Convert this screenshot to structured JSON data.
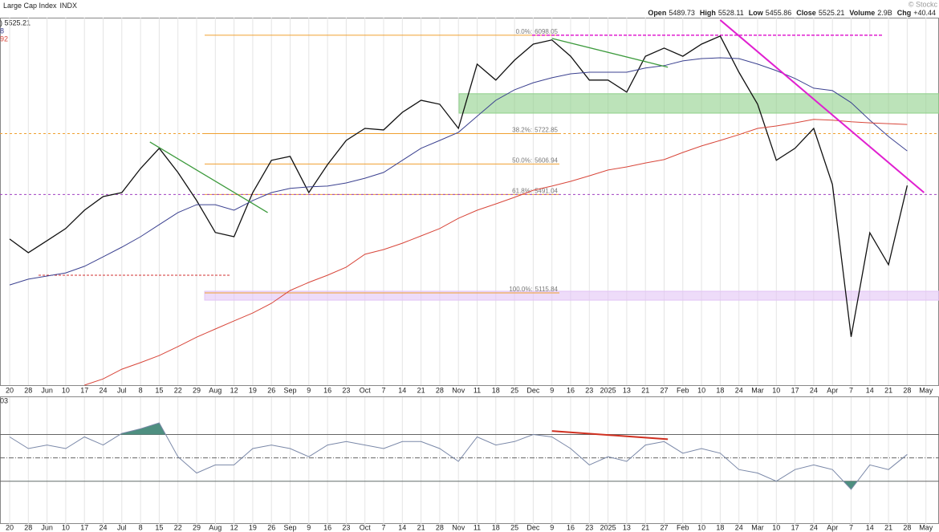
{
  "chart_data": [
    {
      "type": "line",
      "title": "Large Cap Index",
      "symbol": "INDX",
      "legend_lines": [
        ") 5525.21",
        "8",
        "92"
      ],
      "quote": [
        {
          "label": "Open",
          "value": "5489.73"
        },
        {
          "label": "High",
          "value": "5528.11"
        },
        {
          "label": "Low",
          "value": "5455.86"
        },
        {
          "label": "Close",
          "value": "5525.21"
        },
        {
          "label": "Volume",
          "value": "2.9B"
        },
        {
          "label": "Chg",
          "value": "+40.44"
        }
      ],
      "watermark": "© Stockc",
      "categories": [
        "20",
        "28",
        "Jun",
        "10",
        "17",
        "24",
        "Jul",
        "8",
        "15",
        "22",
        "29",
        "Aug",
        "12",
        "19",
        "26",
        "Sep",
        "9",
        "16",
        "23",
        "Oct",
        "7",
        "14",
        "21",
        "28",
        "Nov",
        "11",
        "18",
        "25",
        "Dec",
        "9",
        "16",
        "23",
        "2025",
        "13",
        "21",
        "27",
        "Feb",
        "10",
        "18",
        "24",
        "Mar",
        "10",
        "17",
        "24",
        "Apr",
        "7",
        "14",
        "21",
        "28",
        "May"
      ],
      "series": [
        {
          "color": "#111111",
          "values": [
            5321,
            5269,
            5315,
            5361,
            5431,
            5483,
            5498,
            5590,
            5667,
            5575,
            5468,
            5346,
            5330,
            5498,
            5621,
            5636,
            5498,
            5605,
            5697,
            5743,
            5737,
            5804,
            5850,
            5835,
            5743,
            5988,
            5927,
            6003,
            6064,
            6080,
            6018,
            5927,
            5927,
            5881,
            6018,
            6049,
            6018,
            6064,
            6095,
            5957,
            5835,
            5621,
            5667,
            5743,
            5529,
            4948,
            5345,
            5223,
            5525.21,
            null
          ]
        },
        {
          "color": "#3b4190",
          "values": [
            5146,
            5168,
            5180,
            5192,
            5217,
            5253,
            5290,
            5330,
            5376,
            5422,
            5452,
            5452,
            5431,
            5468,
            5498,
            5514,
            5520,
            5523,
            5535,
            5553,
            5575,
            5621,
            5667,
            5697,
            5728,
            5789,
            5850,
            5890,
            5917,
            5936,
            5951,
            5957,
            5957,
            5957,
            5973,
            5982,
            6000,
            6009,
            6012,
            6009,
            5988,
            5963,
            5933,
            5896,
            5887,
            5841,
            5774,
            5712,
            5657,
            null
          ]
        },
        {
          "color": "#d8463a",
          "values": [
            null,
            null,
            null,
            null,
            4764,
            4788,
            4825,
            4850,
            4877,
            4911,
            4947,
            4978,
            5009,
            5039,
            5076,
            5125,
            5156,
            5183,
            5214,
            5263,
            5281,
            5305,
            5333,
            5361,
            5400,
            5431,
            5455,
            5480,
            5507,
            5523,
            5541,
            5562,
            5584,
            5596,
            5611,
            5624,
            5651,
            5676,
            5697,
            5719,
            5743,
            5752,
            5764,
            5777,
            5774,
            5768,
            5764,
            5761,
            5758,
            null
          ]
        }
      ],
      "ylim": [
        4764,
        6165
      ],
      "fib_levels": [
        {
          "label": "0.0%:",
          "value": 6098.05,
          "color": "#f0a030",
          "extension_color": "#e020d0"
        },
        {
          "label": "38.2%:",
          "value": 5722.85,
          "color": "#f0a030",
          "extension_color": "#f0a030"
        },
        {
          "label": "50.0%:",
          "value": 5606.94,
          "color": "#f0a030"
        },
        {
          "label": "61.8%:",
          "value": 5491.04,
          "color": "#f0a030",
          "extension_color": "#a040c0"
        },
        {
          "label": "100.0%:",
          "value": 5115.84,
          "color": "#f0a030"
        }
      ],
      "zones": [
        {
          "from": 5801,
          "to": 5875,
          "color": "#8fd08a"
        },
        {
          "from": 5088,
          "to": 5122,
          "color": "#e2c4f5"
        }
      ],
      "support": {
        "value": 5183,
        "color": "#d03030"
      },
      "trendlines": [
        {
          "color": "#e020d0",
          "values": [
            6156,
            5498
          ]
        },
        {
          "color": "#3c9a3c",
          "values": [
            5691,
            5422
          ]
        },
        {
          "color": "#3c9a3c",
          "values": [
            6086,
            5976
          ]
        }
      ],
      "grid": true
    },
    {
      "type": "line",
      "label": "03",
      "categories": [
        "20",
        "28",
        "Jun",
        "10",
        "17",
        "24",
        "Jul",
        "8",
        "15",
        "22",
        "29",
        "Aug",
        "12",
        "19",
        "26",
        "Sep",
        "9",
        "16",
        "23",
        "Oct",
        "7",
        "14",
        "21",
        "28",
        "Nov",
        "11",
        "18",
        "25",
        "Dec",
        "9",
        "16",
        "23",
        "2025",
        "13",
        "21",
        "27",
        "Feb",
        "10",
        "18",
        "24",
        "Mar",
        "10",
        "17",
        "24",
        "Apr",
        "7",
        "14",
        "21",
        "28",
        "May"
      ],
      "series": [
        {
          "color": "#7a88a8",
          "values": [
            68,
            58,
            61,
            58,
            68,
            61,
            71,
            75,
            80,
            51,
            37,
            44,
            44,
            58,
            61,
            58,
            51,
            61,
            64,
            61,
            58,
            64,
            64,
            58,
            47,
            68,
            61,
            64,
            70,
            68,
            58,
            44,
            51,
            47,
            61,
            64,
            54,
            58,
            54,
            40,
            37,
            30,
            40,
            44,
            40,
            23,
            44,
            40,
            53,
            null
          ]
        }
      ],
      "ylim": [
        -8,
        102
      ],
      "levels": [
        70,
        50,
        30
      ],
      "upper_fill": "#4e8f80",
      "lower_fill": "#4e8f80",
      "trendlines": [
        {
          "color": "#d03020",
          "values": [
            73,
            66
          ]
        }
      ],
      "grid": true
    }
  ]
}
